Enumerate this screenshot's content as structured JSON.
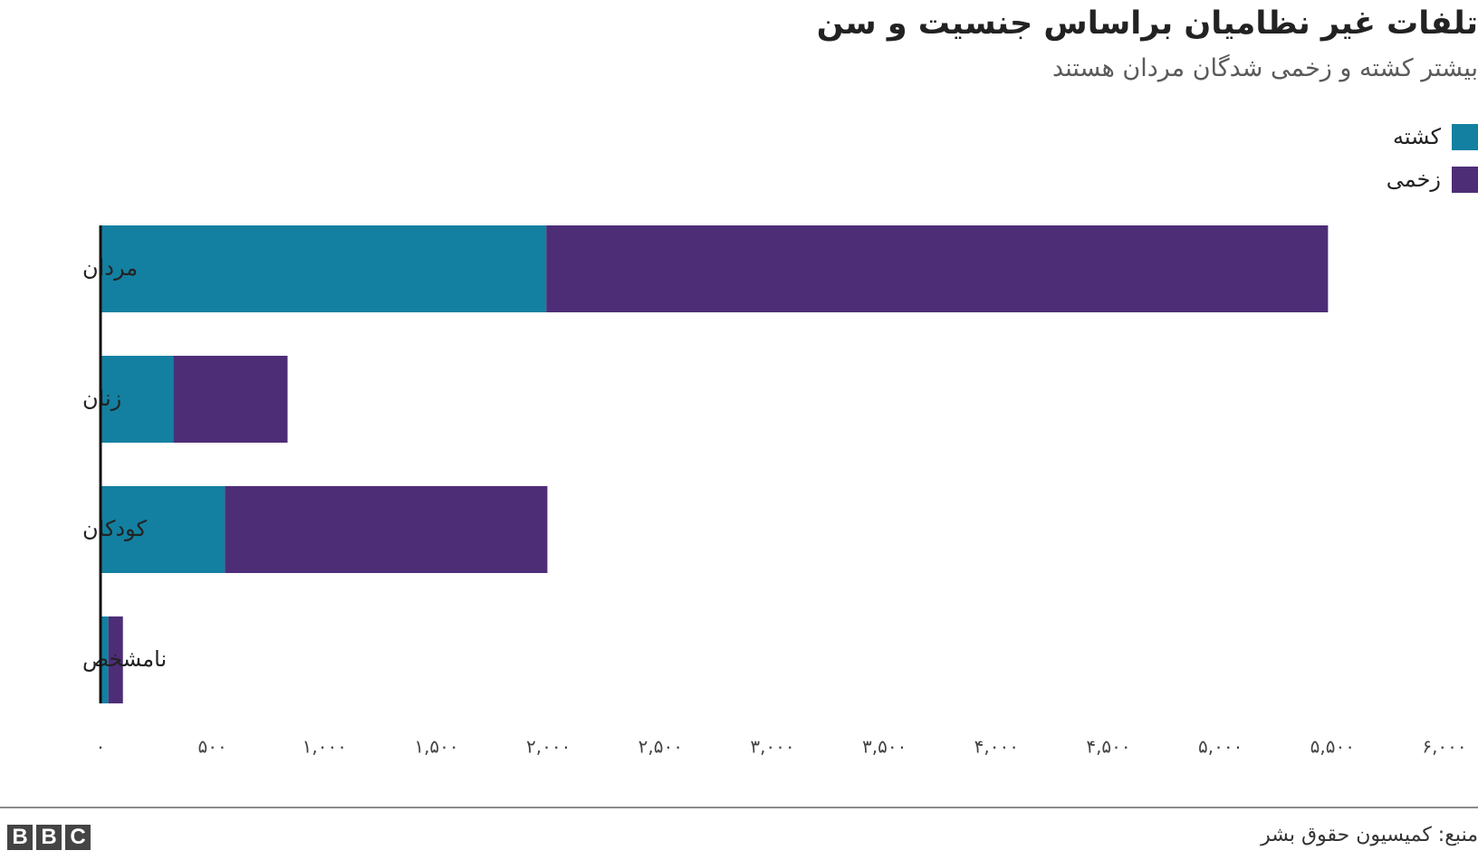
{
  "header": {
    "title": "تلفات غیر نظامیان براساس جنسیت و سن",
    "subtitle": "بیشتر کشته و زخمی شدگان مردان هستند"
  },
  "legend": [
    {
      "label": "کشته",
      "color": "#1380a1"
    },
    {
      "label": "زخمی",
      "color": "#4e2d77"
    }
  ],
  "footer": {
    "source": "منبع: کمیسیون حقوق بشر",
    "logo_letters": [
      "B",
      "B",
      "C"
    ]
  },
  "chart_data": {
    "type": "bar",
    "orientation": "horizontal",
    "stacked": true,
    "title": "تلفات غیر نظامیان براساس جنسیت و سن",
    "subtitle": "بیشتر کشته و زخمی شدگان مردان هستند",
    "xlabel": "",
    "ylabel": "",
    "categories": [
      "مردان",
      "زنان",
      "کودکان",
      "نامشخص"
    ],
    "series": [
      {
        "name": "کشته",
        "color": "#1380a1",
        "values": [
          1990,
          325,
          555,
          35
        ]
      },
      {
        "name": "زخمی",
        "color": "#4e2d77",
        "values": [
          3490,
          510,
          1440,
          65
        ]
      }
    ],
    "xlim": [
      0,
      6000
    ],
    "xticks": [
      0,
      500,
      1000,
      1500,
      2000,
      2500,
      3000,
      3500,
      4000,
      4500,
      5000,
      5500,
      6000
    ],
    "xtick_labels": [
      "۰",
      "۵۰۰",
      "۱,۰۰۰",
      "۱,۵۰۰",
      "۲,۰۰۰",
      "۲,۵۰۰",
      "۳,۰۰۰",
      "۳,۵۰۰",
      "۴,۰۰۰",
      "۴,۵۰۰",
      "۵,۰۰۰",
      "۵,۵۰۰",
      "۶,۰۰۰"
    ],
    "grid": false,
    "legend_position": "top-right"
  }
}
